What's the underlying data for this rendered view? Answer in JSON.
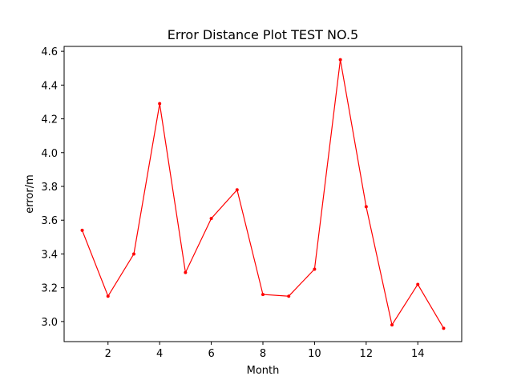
{
  "chart_data": {
    "type": "line",
    "title": "Error Distance Plot TEST NO.5",
    "xlabel": "Month",
    "ylabel": "error/m",
    "x": [
      1,
      2,
      3,
      4,
      5,
      6,
      7,
      8,
      9,
      10,
      11,
      12,
      13,
      14,
      15
    ],
    "series": [
      {
        "values": [
          3.54,
          3.15,
          3.4,
          4.29,
          3.29,
          3.61,
          3.78,
          3.16,
          3.15,
          3.31,
          4.55,
          3.68,
          2.98,
          3.22,
          2.96
        ],
        "color": "#ff0000",
        "marker": "point"
      }
    ],
    "xlim": [
      0.3,
      15.7
    ],
    "ylim": [
      2.881,
      4.629
    ],
    "xticks": [
      2,
      4,
      6,
      8,
      10,
      12,
      14
    ],
    "xtick_labels": [
      "2",
      "4",
      "6",
      "8",
      "10",
      "12",
      "14"
    ],
    "yticks": [
      3.0,
      3.2,
      3.4,
      3.6,
      3.8,
      4.0,
      4.2,
      4.4,
      4.6
    ],
    "ytick_labels": [
      "3.0",
      "3.2",
      "3.4",
      "3.6",
      "3.8",
      "4.0",
      "4.2",
      "4.4",
      "4.6"
    ],
    "grid": false,
    "legend": "none"
  }
}
